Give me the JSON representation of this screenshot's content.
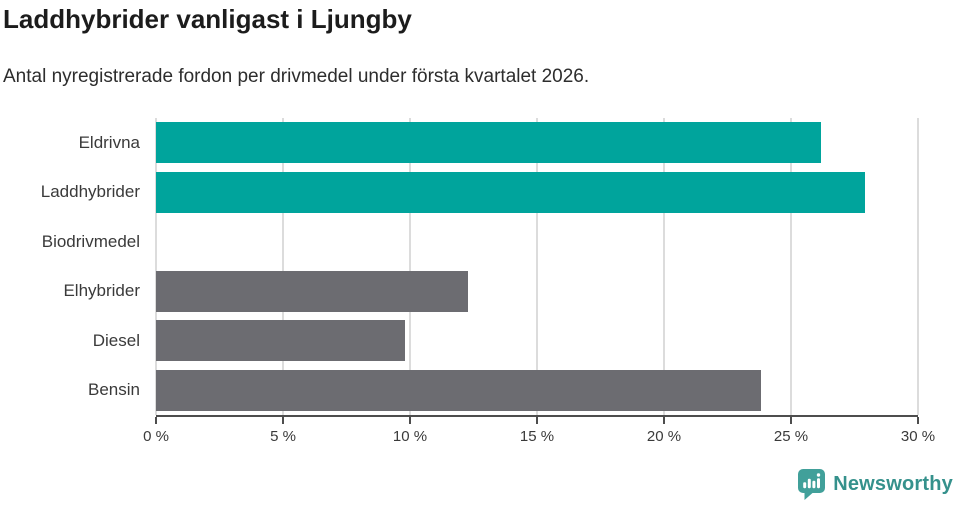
{
  "header": {
    "title": "Laddhybrider vanligast i Ljungby",
    "subtitle": "Antal nyregistrerade fordon per drivmedel under första kvartalet 2026."
  },
  "chart_data": {
    "type": "bar",
    "orientation": "horizontal",
    "title": "Laddhybrider vanligast i Ljungby",
    "subtitle": "Antal nyregistrerade fordon per drivmedel under första kvartalet 2026.",
    "categories": [
      "Eldrivna",
      "Laddhybrider",
      "Biodrivmedel",
      "Elhybrider",
      "Diesel",
      "Bensin"
    ],
    "values": [
      26.2,
      27.9,
      0,
      12.3,
      9.8,
      23.8
    ],
    "unit": "%",
    "xlim": [
      0,
      30
    ],
    "xticks": [
      0,
      5,
      10,
      15,
      20,
      25,
      30
    ],
    "xtick_labels": [
      "0 %",
      "5 %",
      "10 %",
      "15 %",
      "20 %",
      "25 %",
      "30 %"
    ],
    "grid": true,
    "legend": false,
    "bar_colors": [
      "#00A49C",
      "#00A49C",
      "#6C6C71",
      "#6C6C71",
      "#6C6C71",
      "#6C6C71"
    ],
    "highlight_color": "#00A49C",
    "base_color": "#6C6C71",
    "gridline_color": "#dcdcdc",
    "axis_color": "#4d4d4d"
  },
  "footer": {
    "brand": "Newsworthy",
    "brand_color": "#35918C",
    "icon_color": "#41A09A"
  }
}
